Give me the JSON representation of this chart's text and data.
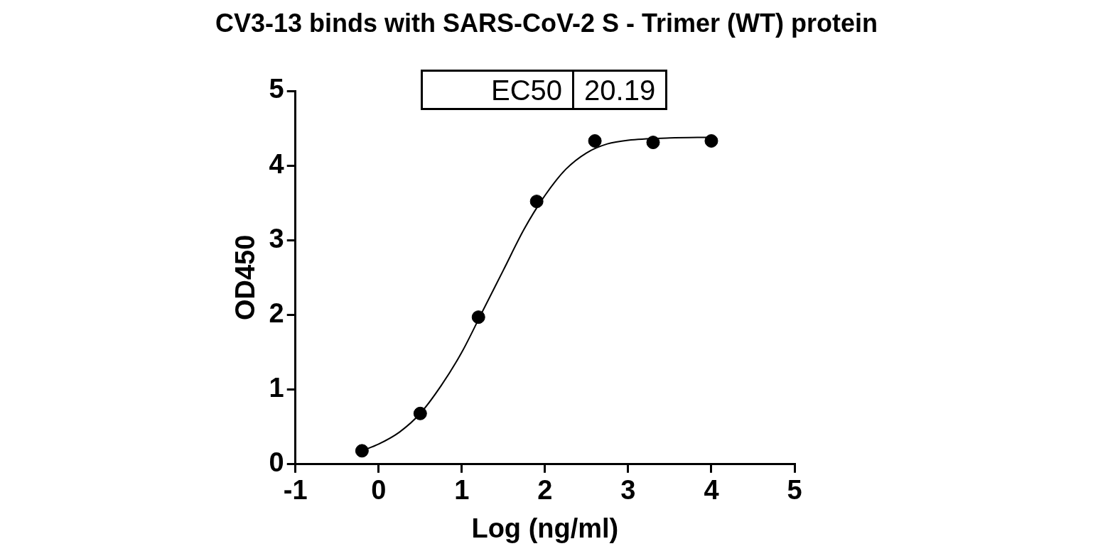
{
  "chart_data": {
    "type": "scatter",
    "title": "CV3-13 binds with SARS-CoV-2 S - Trimer (WT) protein",
    "xlabel": "Log (ng/ml)",
    "ylabel": "OD450",
    "annotations": [
      "EC50",
      "20.19"
    ],
    "series": [
      {
        "color": "#000000",
        "marker": "circle",
        "x": [
          -0.2,
          0.5,
          1.2,
          1.9,
          2.6,
          3.3,
          4.0
        ],
        "values": [
          0.18,
          0.68,
          1.97,
          3.52,
          4.33,
          4.31,
          4.33
        ]
      },
      {
        "type": "line",
        "color": "#000000",
        "marker": "none",
        "x": [
          -0.2,
          0,
          0.25,
          0.5,
          0.75,
          1.0,
          1.25,
          1.5,
          1.75,
          2.0,
          2.25,
          2.5,
          2.75,
          3.0,
          3.5,
          4.0
        ],
        "values": [
          0.18,
          0.27,
          0.43,
          0.68,
          1.05,
          1.5,
          2.05,
          2.6,
          3.15,
          3.6,
          3.95,
          4.17,
          4.29,
          4.34,
          4.37,
          4.38
        ]
      }
    ],
    "xlim": [
      -1,
      5
    ],
    "xticks": [
      -1,
      0,
      1,
      2,
      3,
      4,
      5
    ],
    "ylim": [
      0,
      5
    ],
    "yticks": [
      0,
      1,
      2,
      3,
      4,
      5
    ],
    "grid": false,
    "legend": false
  }
}
